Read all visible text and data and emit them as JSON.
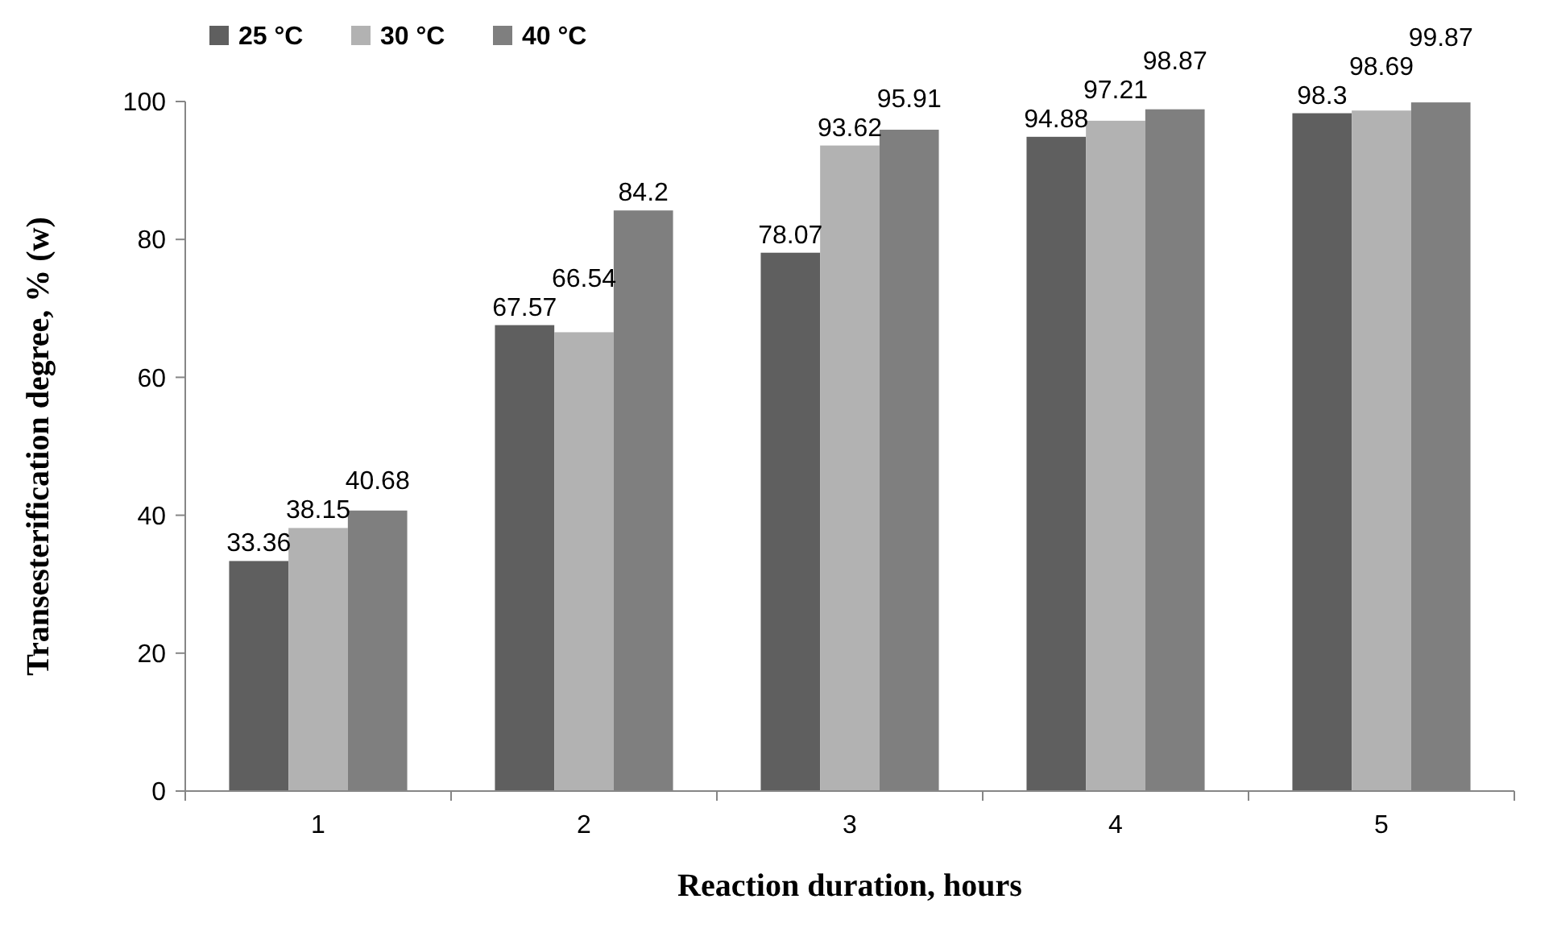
{
  "chart_data": {
    "type": "bar",
    "xlabel": "Reaction duration, hours",
    "ylabel": "Transesterification degree, % (w)",
    "categories": [
      "1",
      "2",
      "3",
      "4",
      "5"
    ],
    "series": [
      {
        "name": "25 °C",
        "color": "#5f5f5f",
        "values": [
          33.36,
          67.57,
          78.07,
          94.88,
          98.3
        ]
      },
      {
        "name": "30 °C",
        "color": "#b2b2b2",
        "values": [
          38.15,
          66.54,
          93.62,
          97.21,
          98.69
        ]
      },
      {
        "name": "40 °C",
        "color": "#7f7f7f",
        "values": [
          40.68,
          84.2,
          95.91,
          98.87,
          99.87
        ]
      }
    ],
    "ylim": [
      0,
      100
    ],
    "yticks": [
      0,
      20,
      40,
      60,
      80,
      100
    ],
    "grid": false,
    "legend": "top left",
    "data_labels": true
  }
}
